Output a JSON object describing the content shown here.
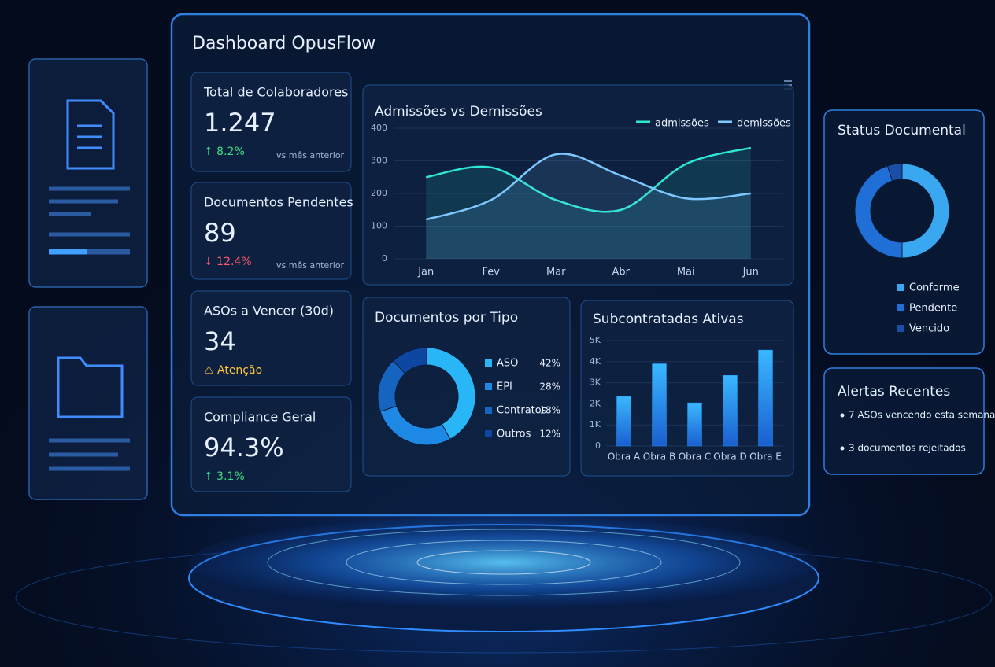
{
  "header": {
    "title": "Dashboard OpusFlow"
  },
  "kpis": [
    {
      "label": "Total de Colaboradores",
      "value": "1.247",
      "delta": "↑ 8.2%",
      "note": "vs mês anterior"
    },
    {
      "label": "Documentos Pendentes",
      "value": "89",
      "delta": "↓ 12.4%",
      "note": "vs mês anterior"
    },
    {
      "label": "ASOs a Vencer (30d)",
      "value": "34",
      "delta": "⚠ Atenção"
    },
    {
      "label": "Compliance Geral",
      "value": "94.3%",
      "delta": "↑ 3.1%"
    }
  ],
  "chart_data": [
    {
      "type": "line",
      "title": "Admissões vs Demissões",
      "categories": [
        "Jan",
        "Fev",
        "Mar",
        "Abr",
        "Mai",
        "Jun"
      ],
      "series": [
        {
          "name": "admissões",
          "color": "#2ee6d6",
          "values": [
            250,
            280,
            180,
            150,
            290,
            340
          ]
        },
        {
          "name": "demissões",
          "color": "#7fc8ff",
          "values": [
            120,
            180,
            320,
            255,
            185,
            200
          ]
        }
      ],
      "ylim": [
        0,
        400
      ],
      "yticks": [
        0,
        100,
        200,
        300,
        400
      ],
      "grid": true,
      "legend": "top-right"
    },
    {
      "type": "donut",
      "title": "Documentos por Tipo",
      "categories": [
        "ASO",
        "EPI",
        "Contratos",
        "Outros"
      ],
      "values": [
        42,
        28,
        18,
        12
      ],
      "value_labels": [
        "42%",
        "28%",
        "18%",
        "12%"
      ],
      "colors": [
        "#29b6f6",
        "#1e88e5",
        "#1565c0",
        "#0d47a1"
      ]
    },
    {
      "type": "bar",
      "title": "Subcontratadas Ativas",
      "categories": [
        "Obra A",
        "Obra B",
        "Obra C",
        "Obra D",
        "Obra E"
      ],
      "values": [
        2350,
        3900,
        2050,
        3350,
        4550
      ],
      "color": "#2196f3",
      "ylim": [
        0,
        5000
      ],
      "yticks": [
        0,
        {
          "value": 1000,
          "label": "1K"
        },
        {
          "value": 2000,
          "label": "2K"
        },
        {
          "value": 3000,
          "label": "3K"
        },
        {
          "value": 4000,
          "label": "4K"
        },
        {
          "value": 5000,
          "label": "5K"
        }
      ]
    },
    {
      "type": "donut",
      "title": "Status Documental",
      "categories": [
        "Conforme",
        "Pendente",
        "Vencido"
      ],
      "values": [
        50,
        45,
        5
      ],
      "colors": [
        "#3aa8f0",
        "#1f6fd6",
        "#1a4fa8"
      ]
    }
  ],
  "alerts": {
    "title": "Alertas Recentes",
    "items": [
      "7 ASOs vencendo esta semana",
      "3 documentos rejeitados"
    ]
  }
}
